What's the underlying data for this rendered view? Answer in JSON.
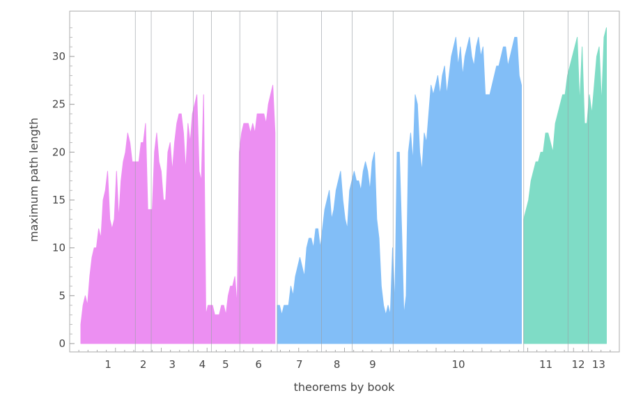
{
  "chart_data": {
    "type": "area",
    "title": "",
    "xlabel": "theorems by book",
    "ylabel": "maximum path length",
    "ylim": [
      0,
      33
    ],
    "y_ticks": [
      0,
      5,
      10,
      15,
      20,
      25,
      30
    ],
    "grid": "vertical book separators",
    "books": [
      {
        "label": "1",
        "start": 0,
        "end": 48
      },
      {
        "label": "2",
        "start": 48,
        "end": 62
      },
      {
        "label": "3",
        "start": 62,
        "end": 99
      },
      {
        "label": "4",
        "start": 99,
        "end": 115
      },
      {
        "label": "5",
        "start": 115,
        "end": 140
      },
      {
        "label": "6",
        "start": 140,
        "end": 173
      },
      {
        "label": "7",
        "start": 173,
        "end": 212
      },
      {
        "label": "8",
        "start": 212,
        "end": 239
      },
      {
        "label": "9",
        "start": 239,
        "end": 275
      },
      {
        "label": "10",
        "start": 275,
        "end": 390
      },
      {
        "label": "11",
        "start": 390,
        "end": 429
      },
      {
        "label": "12",
        "start": 429,
        "end": 447
      },
      {
        "label": "13",
        "start": 447,
        "end": 465
      }
    ],
    "x_total": 465,
    "series": [
      {
        "color": "#ec8ff2",
        "x_start": 0,
        "values": [
          2,
          4,
          5,
          4,
          7,
          9,
          10,
          10,
          12,
          11,
          15,
          16,
          18,
          13,
          12,
          13,
          18,
          13,
          17,
          19,
          20,
          22,
          21,
          19,
          19,
          19,
          19,
          21,
          21,
          23,
          14,
          14,
          14,
          20,
          22,
          19,
          18,
          15,
          15,
          20,
          21,
          18,
          21,
          23,
          24,
          24,
          22,
          18,
          23,
          21,
          24,
          25,
          26,
          18,
          17,
          26,
          3,
          4,
          4,
          4,
          3,
          3,
          3,
          4,
          4,
          3,
          5,
          6,
          6,
          7,
          4,
          20,
          22,
          23,
          23,
          23,
          22,
          23,
          22,
          24,
          24,
          24,
          24,
          23,
          25,
          26,
          27,
          22
        ]
      },
      {
        "color": "#82bef7",
        "x_start": 173,
        "values": [
          4,
          4,
          3,
          4,
          4,
          4,
          6,
          5,
          7,
          8,
          9,
          8,
          7,
          10,
          11,
          11,
          10,
          12,
          12,
          10,
          12,
          14,
          15,
          16,
          13,
          14,
          16,
          17,
          18,
          15,
          13,
          12,
          16,
          17,
          18,
          17,
          17,
          16,
          18,
          19,
          18,
          16,
          19,
          20,
          13,
          11,
          6,
          4,
          3,
          4,
          3,
          10,
          4,
          20,
          20,
          12,
          3,
          5,
          20,
          22,
          19,
          26,
          25,
          20,
          18,
          22,
          21,
          24,
          27,
          26,
          27,
          28,
          26,
          28,
          29,
          26,
          28,
          30,
          31,
          32,
          29,
          31,
          28,
          30,
          31,
          32,
          30,
          29,
          31,
          32,
          30,
          31,
          26,
          26,
          26,
          27,
          28,
          29,
          29,
          30,
          31,
          31,
          29,
          30,
          31,
          32,
          32,
          28,
          27
        ]
      },
      {
        "color": "#7fdcc6",
        "x_start": 390,
        "values": [
          13,
          14,
          15,
          17,
          18,
          19,
          19,
          20,
          20,
          22,
          22,
          21,
          20,
          23,
          24,
          25,
          26,
          26,
          28,
          29,
          30,
          31,
          32,
          25,
          31,
          23,
          23,
          26,
          24,
          27,
          30,
          31,
          25,
          32,
          33
        ]
      }
    ]
  }
}
